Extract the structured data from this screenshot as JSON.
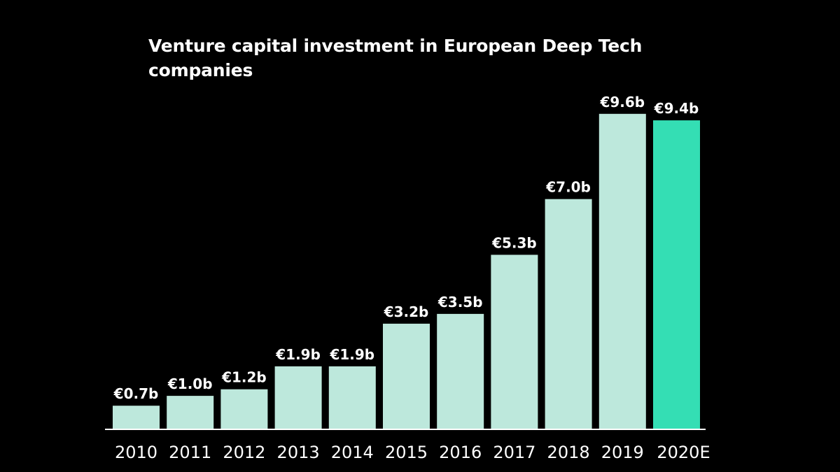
{
  "chart_data": {
    "type": "bar",
    "title": "Venture capital investment in European Deep  Tech companies",
    "xlabel": "",
    "ylabel": "",
    "ylim": [
      0,
      10
    ],
    "grid": false,
    "legend": "none",
    "categories": [
      "2010",
      "2011",
      "2012",
      "2013",
      "2014",
      "2015",
      "2016",
      "2017",
      "2018",
      "2019",
      "2020E"
    ],
    "values": [
      0.7,
      1.0,
      1.2,
      1.9,
      1.9,
      3.2,
      3.5,
      5.3,
      7.0,
      9.6,
      9.4
    ],
    "value_labels": [
      "€0.7b",
      "€1.0b",
      "€1.2b",
      "€1.9b",
      "€1.9b",
      "€3.2b",
      "€3.5b",
      "€5.3b",
      "€7.0b",
      "€9.6b",
      "€9.4b"
    ],
    "estimate_index": 10
  },
  "colors": {
    "background": "#000000",
    "bar": "#bde8dc",
    "bar_estimate": "#34deb4",
    "axis": "#ffffff",
    "text": "#ffffff"
  }
}
